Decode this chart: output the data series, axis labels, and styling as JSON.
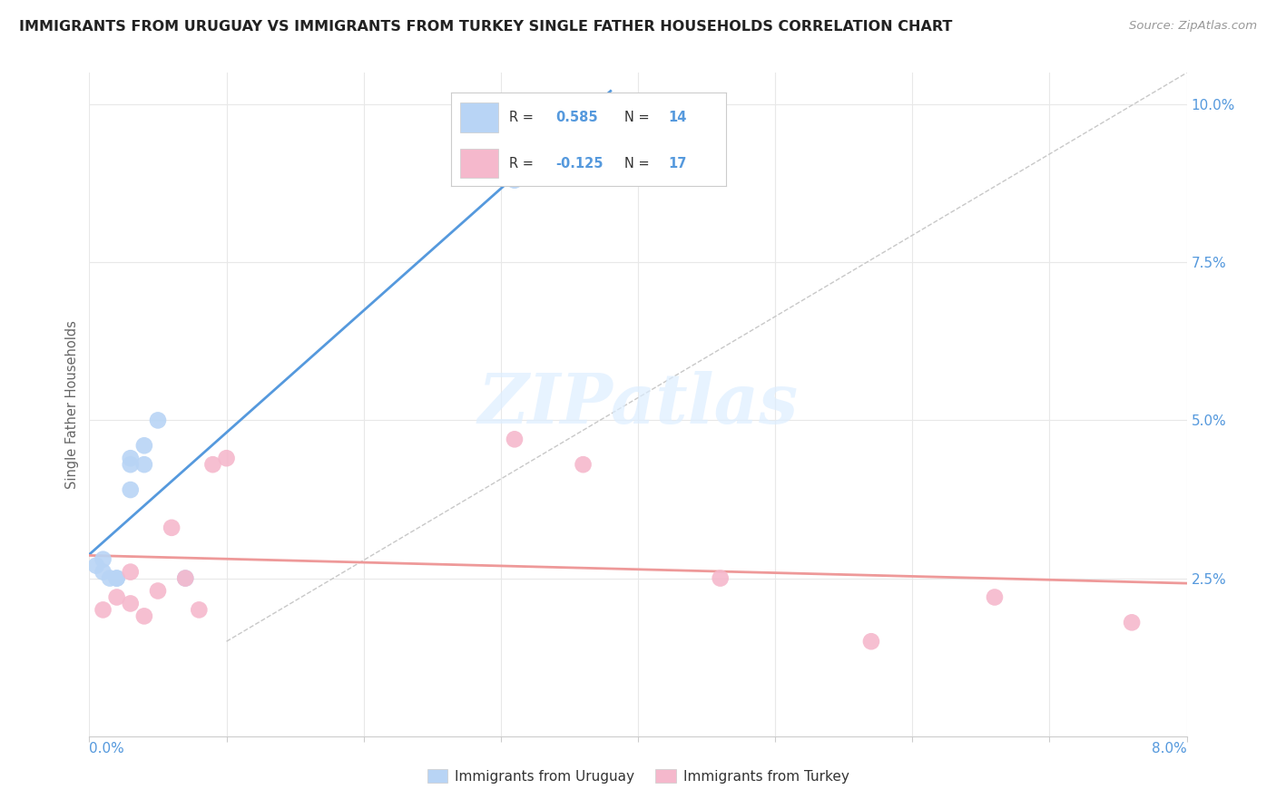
{
  "title": "IMMIGRANTS FROM URUGUAY VS IMMIGRANTS FROM TURKEY SINGLE FATHER HOUSEHOLDS CORRELATION CHART",
  "source": "Source: ZipAtlas.com",
  "ylabel": "Single Father Households",
  "ytick_vals": [
    0.0,
    0.025,
    0.05,
    0.075,
    0.1
  ],
  "ytick_labels": [
    "",
    "2.5%",
    "5.0%",
    "7.5%",
    "10.0%"
  ],
  "xlim": [
    0.0,
    0.08
  ],
  "ylim": [
    0.0,
    0.105
  ],
  "uruguay_R": 0.585,
  "uruguay_N": 14,
  "turkey_R": -0.125,
  "turkey_N": 17,
  "uruguay_x": [
    0.0005,
    0.001,
    0.001,
    0.0015,
    0.002,
    0.002,
    0.003,
    0.003,
    0.003,
    0.004,
    0.004,
    0.005,
    0.007,
    0.031
  ],
  "uruguay_y": [
    0.027,
    0.026,
    0.028,
    0.025,
    0.025,
    0.025,
    0.039,
    0.043,
    0.044,
    0.046,
    0.043,
    0.05,
    0.025,
    0.088
  ],
  "turkey_x": [
    0.001,
    0.002,
    0.003,
    0.003,
    0.004,
    0.005,
    0.006,
    0.007,
    0.008,
    0.009,
    0.01,
    0.031,
    0.036,
    0.046,
    0.057,
    0.066,
    0.076
  ],
  "turkey_y": [
    0.02,
    0.022,
    0.021,
    0.026,
    0.019,
    0.023,
    0.033,
    0.025,
    0.02,
    0.043,
    0.044,
    0.047,
    0.043,
    0.025,
    0.015,
    0.022,
    0.018
  ],
  "bg_color": "#ffffff",
  "grid_color": "#e8e8e8",
  "uruguay_scatter_color": "#b8d4f5",
  "turkey_scatter_color": "#f5b8cc",
  "uruguay_line_color": "#5599dd",
  "turkey_line_color": "#ee9999",
  "diagonal_color": "#c8c8c8",
  "watermark_color": "#ddeeff",
  "watermark_text": "ZIPatlas"
}
